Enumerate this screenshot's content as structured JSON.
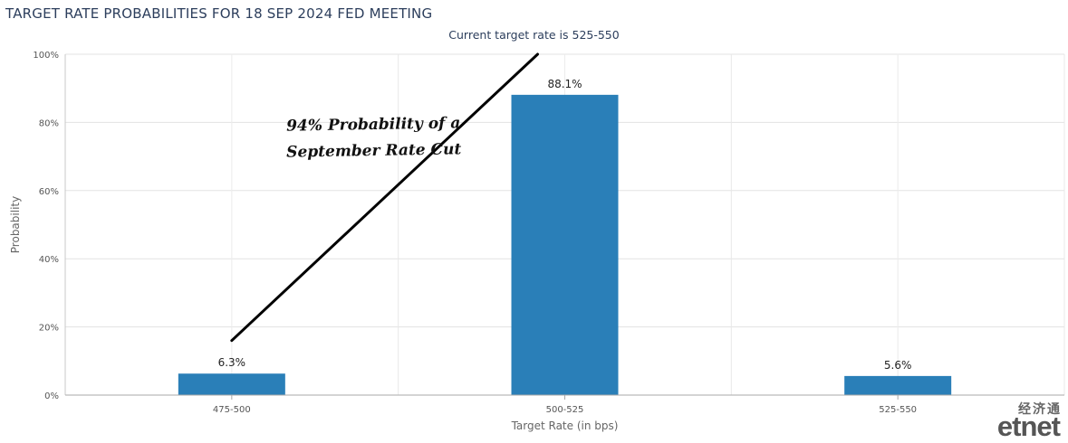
{
  "chart_data": {
    "type": "bar",
    "title": "TARGET RATE PROBABILITIES FOR 18 SEP 2024 FED MEETING",
    "subtitle": "Current target rate is 525-550",
    "xlabel": "Target Rate (in bps)",
    "ylabel": "Probability",
    "categories": [
      "475-500",
      "500-525",
      "525-550"
    ],
    "values": [
      6.3,
      88.1,
      5.6
    ],
    "data_labels": [
      "6.3%",
      "88.1%",
      "5.6%"
    ],
    "ylim": [
      0,
      100
    ],
    "yticks": [
      0,
      20,
      40,
      60,
      80,
      100
    ],
    "ytick_labels": [
      "0%",
      "20%",
      "40%",
      "60%",
      "80%",
      "100%"
    ],
    "grid": true,
    "bar_color": "#2a7fb8",
    "annotation": {
      "text_line1": "94% Probability of a",
      "text_line2": "September Rate Cut",
      "arrow_from": {
        "category": "475-500",
        "value": 16
      },
      "arrow_to": {
        "category": "500-525",
        "value": 100
      }
    }
  },
  "watermark": {
    "chinese": "经济通",
    "english": "etnet"
  }
}
